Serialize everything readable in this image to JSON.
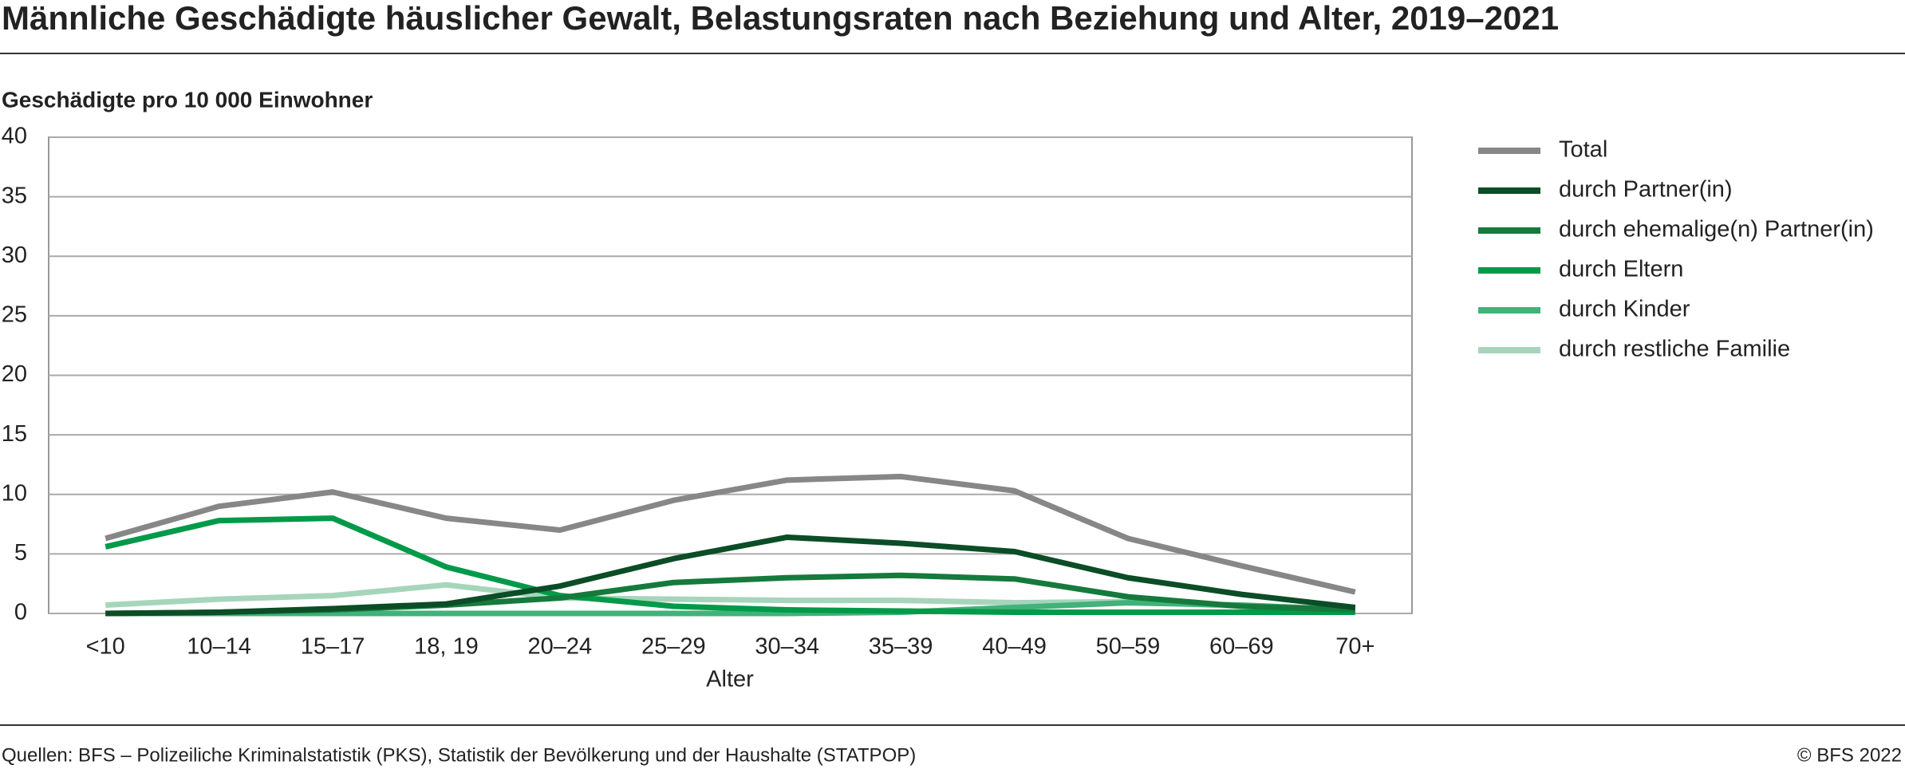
{
  "chart_data": {
    "type": "line",
    "title": "Männliche Geschädigte häuslicher Gewalt, Belastungsraten nach Beziehung und Alter, 2019–2021",
    "y_label": "Geschädigte pro 10 000 Einwohner",
    "x_label": "Alter",
    "categories": [
      "<10",
      "10–14",
      "15–17",
      "18, 19",
      "20–24",
      "25–29",
      "30–34",
      "35–39",
      "40–49",
      "50–59",
      "60–69",
      "70+"
    ],
    "series": [
      {
        "name": "Total",
        "color": "#878787",
        "values": [
          6.3,
          9.0,
          10.2,
          8.0,
          7.0,
          9.5,
          11.2,
          11.5,
          10.3,
          6.3,
          4.0,
          1.8
        ]
      },
      {
        "name": "durch Partner(in)",
        "color": "#0b4d26",
        "values": [
          0,
          0.1,
          0.4,
          0.8,
          2.3,
          4.6,
          6.4,
          5.9,
          5.2,
          3.0,
          1.6,
          0.5
        ]
      },
      {
        "name": "durch ehemalige(n) Partner(in)",
        "color": "#157a3c",
        "values": [
          0,
          0.1,
          0.3,
          0.7,
          1.3,
          2.6,
          3.0,
          3.2,
          2.9,
          1.4,
          0.6,
          0.3
        ]
      },
      {
        "name": "durch Eltern",
        "color": "#009a49",
        "values": [
          5.6,
          7.8,
          8.0,
          3.9,
          1.5,
          0.6,
          0.3,
          0.2,
          0.1,
          0.1,
          0.1,
          0.1
        ]
      },
      {
        "name": "durch Kinder",
        "color": "#40b27a",
        "values": [
          0,
          0,
          0,
          0,
          0,
          0,
          0,
          0.1,
          0.5,
          0.9,
          0.7,
          0.3
        ]
      },
      {
        "name": "durch restliche Familie",
        "color": "#a6d5bb",
        "values": [
          0.7,
          1.2,
          1.5,
          2.4,
          1.3,
          1.2,
          1.1,
          1.1,
          0.9,
          1.0,
          0.6,
          0.3
        ]
      }
    ],
    "ylim": [
      0,
      40
    ],
    "yticks": [
      0,
      5,
      10,
      15,
      20,
      25,
      30,
      35,
      40
    ],
    "grid": true,
    "legend": "right",
    "source": "Quellen: BFS – Polizeiliche Kriminalstatistik (PKS), Statistik der Bevölkerung und der Haushalte (STATPOP)",
    "copyright": "© BFS 2022"
  }
}
